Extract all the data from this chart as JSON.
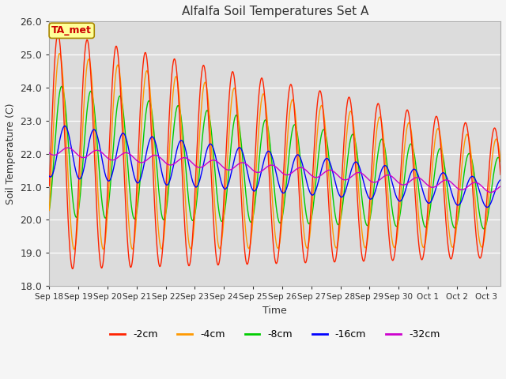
{
  "title": "Alfalfa Soil Temperatures Set A",
  "xlabel": "Time",
  "ylabel": "Soil Temperature (C)",
  "ylim": [
    18.0,
    26.0
  ],
  "yticks": [
    18.0,
    19.0,
    20.0,
    21.0,
    22.0,
    23.0,
    24.0,
    25.0,
    26.0
  ],
  "plot_bg_color": "#dcdcdc",
  "fig_bg_color": "#f5f5f5",
  "annotation_text": "TA_met",
  "annotation_bg": "#ffff99",
  "annotation_border": "#aa8800",
  "annotation_text_color": "#cc0000",
  "series_colors": {
    "-2cm": "#ff2200",
    "-4cm": "#ff9900",
    "-8cm": "#00cc00",
    "-16cm": "#0000ff",
    "-32cm": "#cc00cc"
  },
  "x_tick_labels": [
    "Sep 18",
    "Sep 19",
    "Sep 20",
    "Sep 21",
    "Sep 22",
    "Sep 23",
    "Sep 24",
    "Sep 25",
    "Sep 26",
    "Sep 27",
    "Sep 28",
    "Sep 29",
    "Sep 30",
    "Oct 1",
    "Oct 2",
    "Oct 3"
  ],
  "n_days": 15
}
